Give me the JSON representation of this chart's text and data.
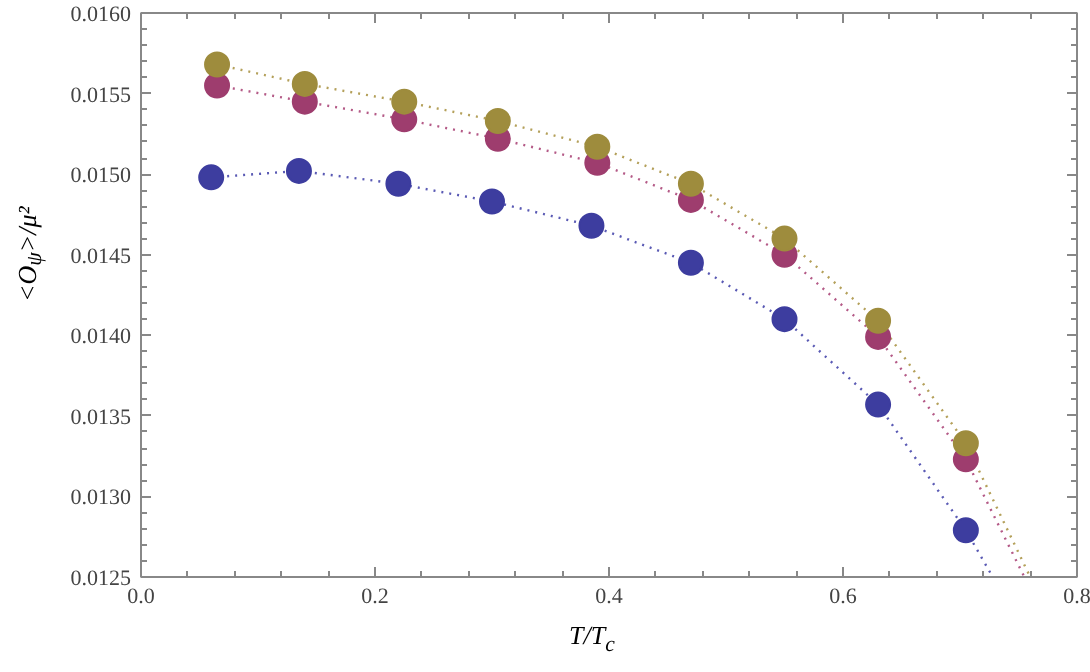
{
  "chart_data": {
    "type": "scatter",
    "xlabel": "T/T$_{c}$",
    "ylabel": "<O$_{ψ}$>/μ²",
    "xlim": [
      0.0,
      0.8
    ],
    "ylim": [
      0.0125,
      0.016
    ],
    "xticks": [
      {
        "value": 0.0,
        "label": "0.0"
      },
      {
        "value": 0.2,
        "label": "0.2"
      },
      {
        "value": 0.4,
        "label": "0.4"
      },
      {
        "value": 0.6,
        "label": "0.6"
      },
      {
        "value": 0.8,
        "label": "0.8"
      }
    ],
    "yticks": [
      {
        "value": 0.0125,
        "label": "0.0125"
      },
      {
        "value": 0.013,
        "label": "0.0130"
      },
      {
        "value": 0.0135,
        "label": "0.0135"
      },
      {
        "value": 0.014,
        "label": "0.0140"
      },
      {
        "value": 0.0145,
        "label": "0.0145"
      },
      {
        "value": 0.015,
        "label": "0.0150"
      },
      {
        "value": 0.0155,
        "label": "0.0155"
      },
      {
        "value": 0.016,
        "label": "0.0160"
      }
    ],
    "grid": false,
    "marker": "circle",
    "series": [
      {
        "type": "line",
        "line_style": "dotted",
        "marker": "none",
        "color": "#5a5ab4",
        "x": [
          0.06,
          0.135,
          0.22,
          0.3,
          0.385,
          0.47,
          0.55,
          0.63,
          0.705,
          0.728
        ],
        "values": [
          0.01498,
          0.01502,
          0.01494,
          0.01483,
          0.01468,
          0.01445,
          0.0141,
          0.01357,
          0.01279,
          0.0125
        ]
      },
      {
        "type": "line",
        "line_style": "dotted",
        "marker": "none",
        "color": "#b45a87",
        "x": [
          0.065,
          0.14,
          0.225,
          0.305,
          0.39,
          0.47,
          0.55,
          0.63,
          0.705,
          0.755
        ],
        "values": [
          0.01555,
          0.01545,
          0.01534,
          0.01522,
          0.01507,
          0.01484,
          0.0145,
          0.01399,
          0.01323,
          0.0125
        ]
      },
      {
        "type": "line",
        "line_style": "dotted",
        "marker": "none",
        "color": "#b4a05a",
        "x": [
          0.065,
          0.14,
          0.225,
          0.305,
          0.39,
          0.47,
          0.55,
          0.63,
          0.705,
          0.76
        ],
        "values": [
          0.01568,
          0.01556,
          0.01545,
          0.01533,
          0.01517,
          0.01494,
          0.0146,
          0.01409,
          0.01333,
          0.0125
        ]
      },
      {
        "color": "#3d3d9f",
        "x": [
          0.06,
          0.135,
          0.22,
          0.3,
          0.385,
          0.47,
          0.55,
          0.63,
          0.705
        ],
        "values": [
          0.01498,
          0.01502,
          0.01494,
          0.01483,
          0.01468,
          0.01445,
          0.0141,
          0.01357,
          0.01279
        ]
      },
      {
        "color": "#9e3d6e",
        "x": [
          0.065,
          0.14,
          0.225,
          0.305,
          0.39,
          0.47,
          0.55,
          0.63,
          0.705
        ],
        "values": [
          0.01555,
          0.01545,
          0.01534,
          0.01522,
          0.01507,
          0.01484,
          0.0145,
          0.01399,
          0.01323
        ]
      },
      {
        "color": "#9e8c3d",
        "x": [
          0.065,
          0.14,
          0.225,
          0.305,
          0.39,
          0.47,
          0.55,
          0.63,
          0.705
        ],
        "values": [
          0.01568,
          0.01556,
          0.01545,
          0.01533,
          0.01517,
          0.01494,
          0.0146,
          0.01409,
          0.01333
        ]
      }
    ]
  }
}
